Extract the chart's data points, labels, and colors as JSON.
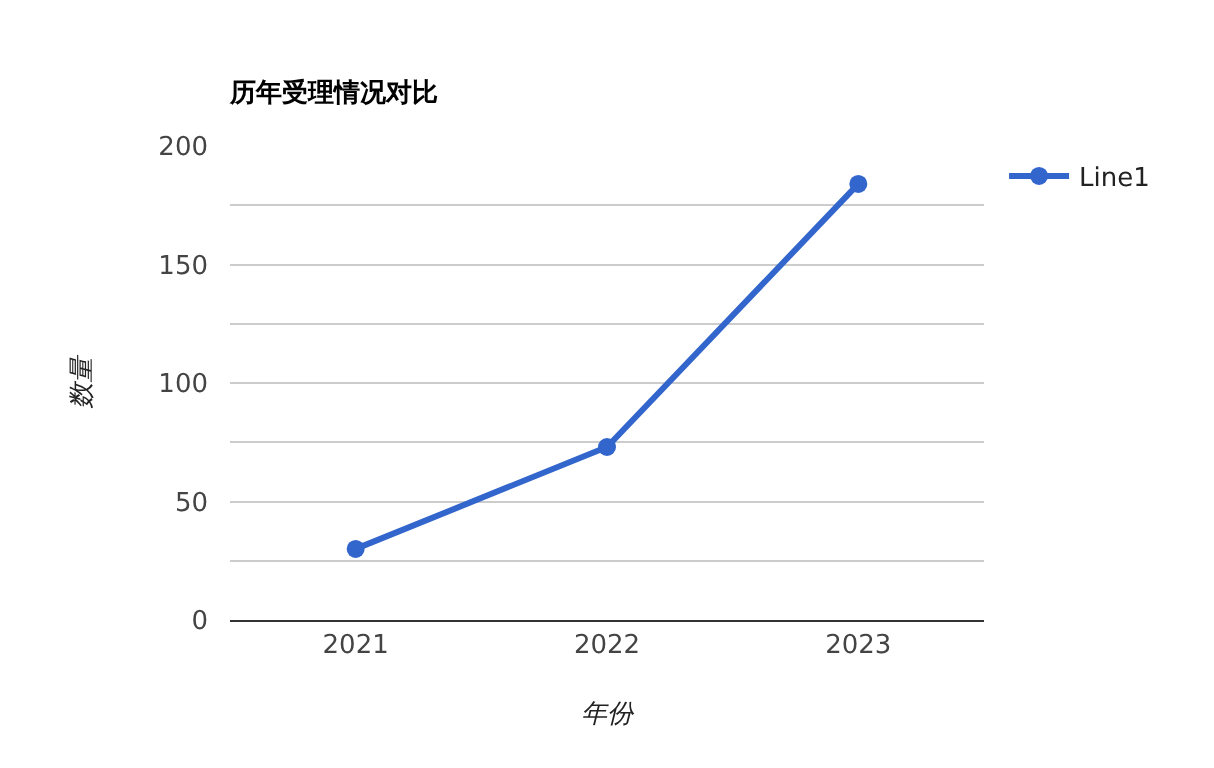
{
  "chart_data": {
    "type": "line",
    "title": "历年受理情况对比",
    "xlabel": "年份",
    "ylabel": "数量",
    "categories": [
      "2021",
      "2022",
      "2023"
    ],
    "series": [
      {
        "name": "Line1",
        "color": "#3366cc",
        "values": [
          30,
          73,
          184
        ]
      }
    ],
    "ylim": [
      0,
      200
    ],
    "yticks": [
      0,
      {
        "value": 25,
        "label": null
      },
      50,
      {
        "value": 75,
        "label": null
      },
      100,
      {
        "value": 125,
        "label": null
      },
      150,
      {
        "value": 175,
        "label": null
      },
      200
    ],
    "grid": "y",
    "legend": "top right",
    "marker": "circle",
    "line_style": "solid"
  }
}
